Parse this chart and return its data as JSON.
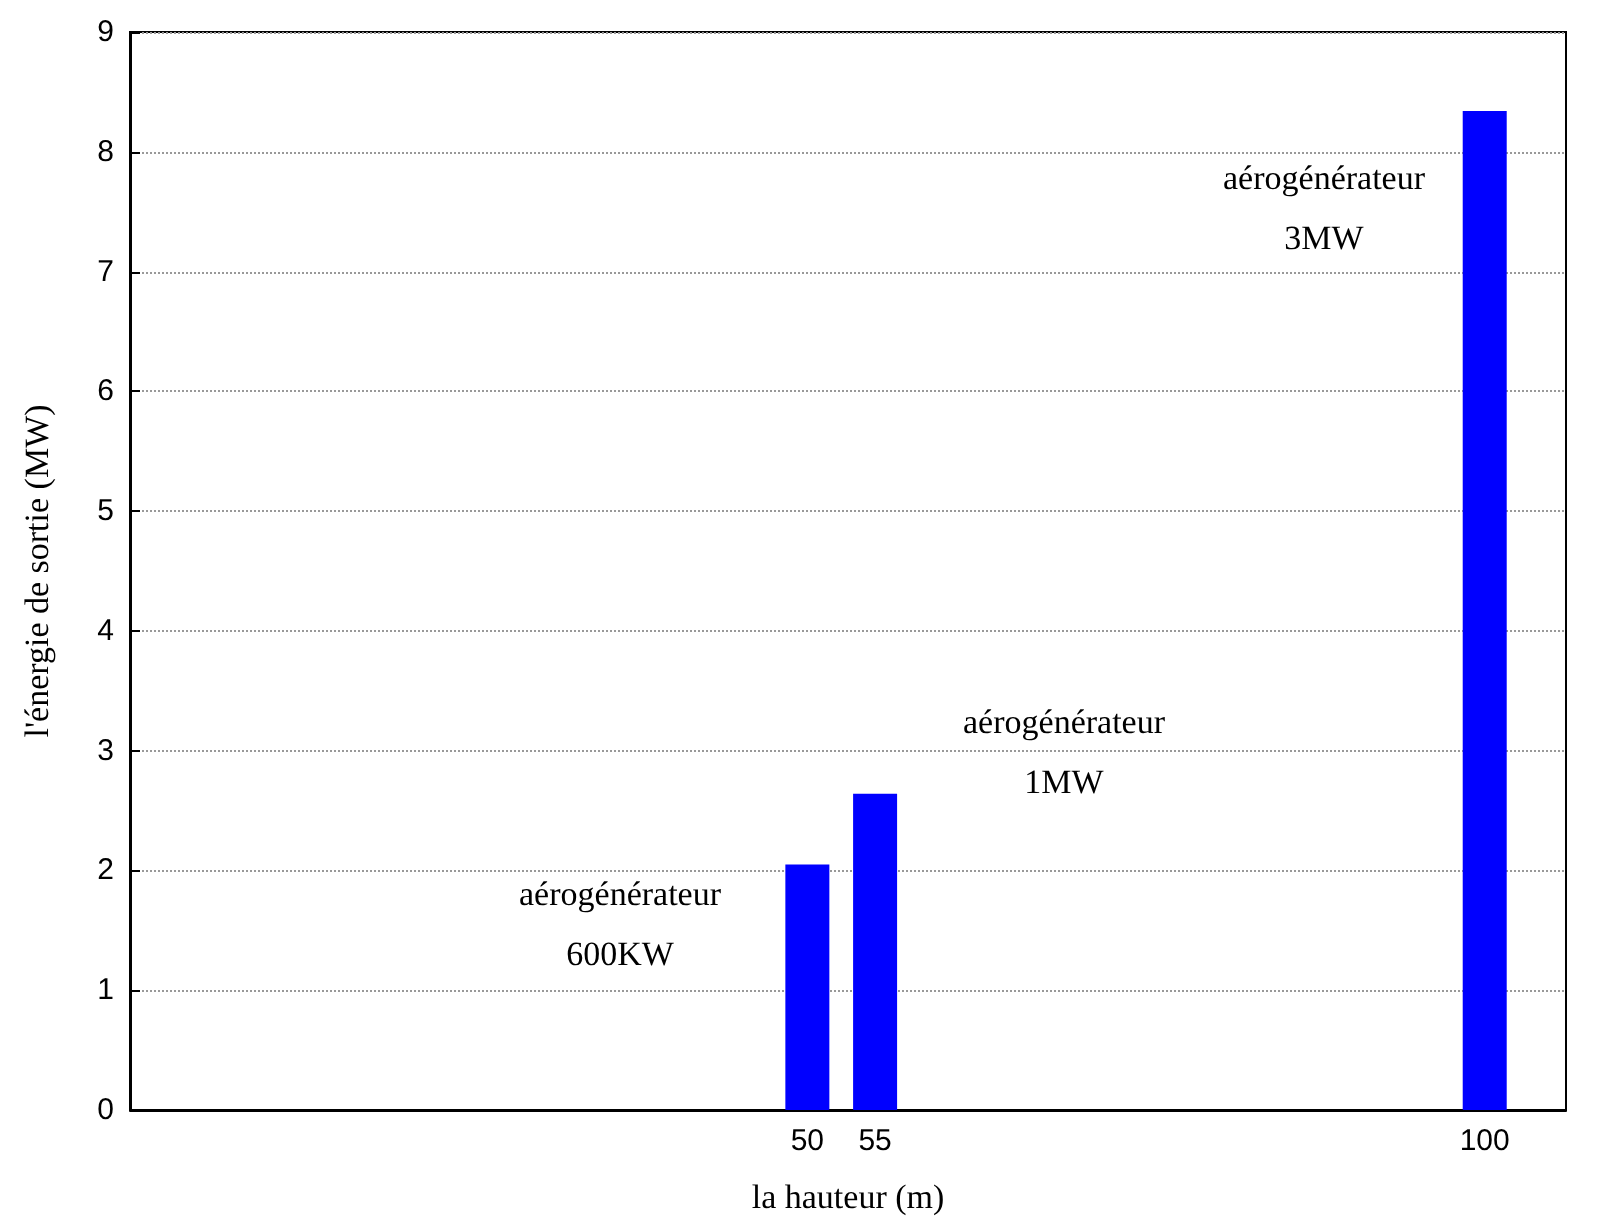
{
  "chart_data": {
    "type": "bar",
    "xlabel": "la hauteur (m)",
    "ylabel": "l'énergie de sortie (MW)",
    "x": [
      50,
      55,
      100
    ],
    "values": [
      2.05,
      2.64,
      8.34
    ],
    "color": "#0000ff",
    "xlim": [
      0,
      106
    ],
    "xticks": [
      50,
      55,
      100
    ],
    "ylim": [
      0,
      9
    ],
    "yticks": [
      0,
      1,
      2,
      3,
      4,
      5,
      6,
      7,
      8,
      9
    ],
    "grid": "y",
    "annotations": [
      "aérogénérateur\n600KW",
      "aérogénérateur\n1MW",
      "aérogénérateur\n3MW"
    ]
  }
}
